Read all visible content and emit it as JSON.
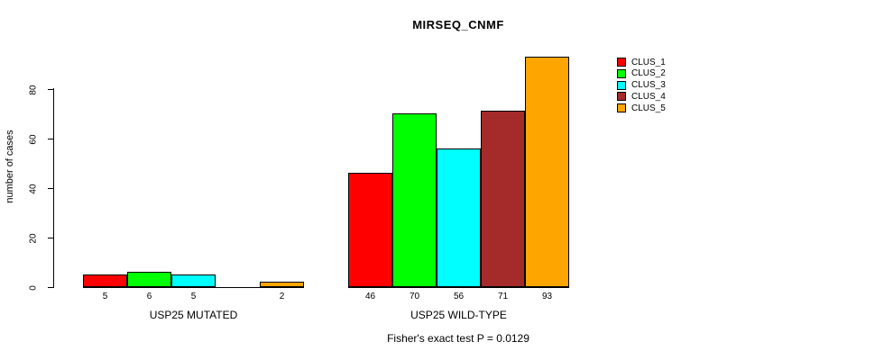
{
  "chart_data": {
    "type": "bar",
    "title": "MIRSEQ_CNMF",
    "ylabel": "number of cases",
    "xlabel": "",
    "series": [
      {
        "name": "CLUS_1",
        "color": "#FF0000"
      },
      {
        "name": "CLUS_2",
        "color": "#00FF00"
      },
      {
        "name": "CLUS_3",
        "color": "#00FFFF"
      },
      {
        "name": "CLUS_4",
        "color": "#A52A2A"
      },
      {
        "name": "CLUS_5",
        "color": "#FFA500"
      }
    ],
    "groups": [
      {
        "label": "USP25 MUTATED",
        "values": [
          5,
          6,
          5,
          0,
          2
        ],
        "bar_labels": [
          "5",
          "6",
          "5",
          "",
          "2"
        ]
      },
      {
        "label": "USP25 WILD-TYPE",
        "values": [
          46,
          70,
          56,
          71,
          93
        ],
        "bar_labels": [
          "46",
          "70",
          "56",
          "71",
          "93"
        ]
      }
    ],
    "y_ticks": [
      0,
      20,
      40,
      60,
      80
    ],
    "ylim": [
      0,
      93
    ],
    "grid": false,
    "legend_position": "top-right",
    "annotation": "Fisher's exact test P = 0.0129",
    "text_color": "#000000",
    "background_color": "#FFFFFF"
  }
}
